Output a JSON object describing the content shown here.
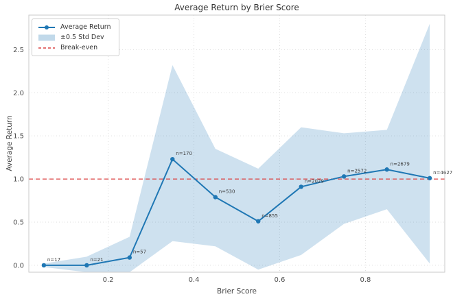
{
  "legend": {
    "items": [
      {
        "label": "Average Return"
      },
      {
        "label": "±0.5 Std Dev"
      },
      {
        "label": "Break-even"
      }
    ]
  },
  "chart_data": {
    "type": "line",
    "title": "Average Return by Brier Score",
    "xlabel": "Brier Score",
    "ylabel": "Average Return",
    "x": [
      0.05,
      0.15,
      0.25,
      0.35,
      0.45,
      0.55,
      0.65,
      0.75,
      0.85,
      0.95
    ],
    "series": [
      {
        "name": "Average Return",
        "values": [
          0.0,
          0.0,
          0.09,
          1.23,
          0.79,
          0.51,
          0.91,
          1.03,
          1.11,
          1.01
        ],
        "color": "#1f77b4",
        "marker": "circle"
      }
    ],
    "band": {
      "name": "±0.5 Std Dev",
      "upper": [
        0.02,
        0.1,
        0.33,
        2.32,
        1.35,
        1.12,
        1.6,
        1.53,
        1.57,
        2.8
      ],
      "lower": [
        -0.02,
        -0.08,
        -0.08,
        0.28,
        0.22,
        -0.05,
        0.12,
        0.48,
        0.65,
        0.02
      ],
      "fill": "rgba(31,119,180,0.22)"
    },
    "break_even": {
      "name": "Break-even",
      "value": 1.0,
      "color": "#dc4444",
      "style": "dashed"
    },
    "point_labels": [
      "n=17",
      "n=21",
      "n=57",
      "n=170",
      "n=530",
      "n=855",
      "n=2029",
      "n=2572",
      "n=2679",
      "n=4627"
    ],
    "x_ticks": {
      "values": [
        0.2,
        0.4,
        0.6,
        0.8
      ],
      "labels": [
        "0.2",
        "0.4",
        "0.6",
        "0.8"
      ]
    },
    "y_ticks": {
      "values": [
        0.0,
        0.5,
        1.0,
        1.5,
        2.0,
        2.5
      ],
      "labels": [
        "0.0",
        "0.5",
        "1.0",
        "1.5",
        "2.0",
        "2.5"
      ]
    },
    "xlim": [
      0.015,
      0.985
    ],
    "ylim": [
      -0.08,
      2.9
    ],
    "grid": true,
    "legend_position": "upper left"
  }
}
